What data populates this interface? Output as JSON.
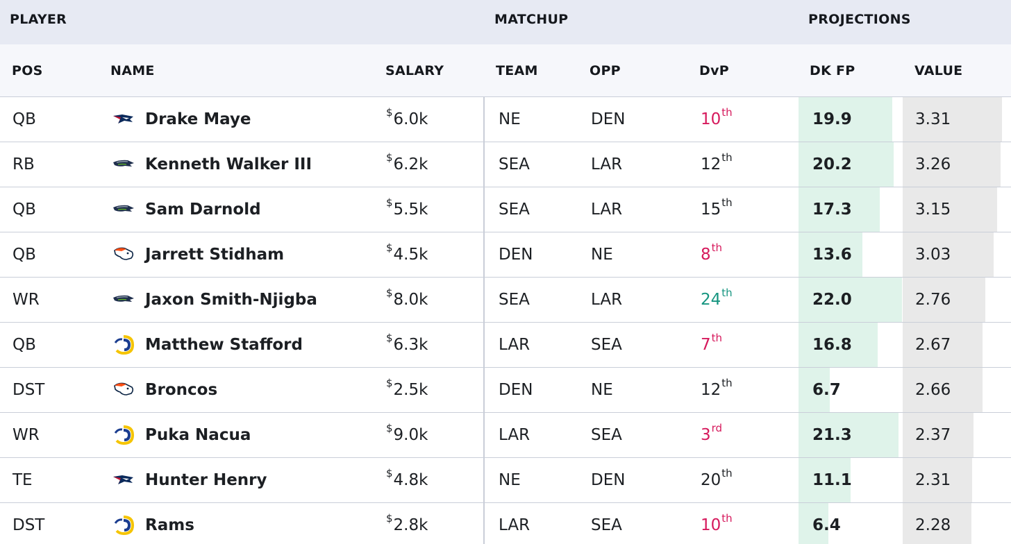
{
  "group_headers": {
    "player": "PLAYER",
    "matchup": "MATCHUP",
    "projections": "PROJECTIONS"
  },
  "columns": {
    "pos": "POS",
    "name": "NAME",
    "salary": "SALARY",
    "team": "TEAM",
    "opp": "OPP",
    "dvp": "DvP",
    "dkfp": "DK FP",
    "value": "VALUE"
  },
  "colors": {
    "dvp_bad": "#d6195c",
    "dvp_good": "#169580",
    "fp_bar": "#dff3ea",
    "value_bar": "#e9e9e9"
  },
  "fp_scale_max": 22.0,
  "value_scale_max": 3.31,
  "rows": [
    {
      "pos": "QB",
      "logo": "patriots-logo-icon",
      "name": "Drake Maye",
      "salary_sym": "$",
      "salary": "6.0k",
      "team": "NE",
      "opp": "DEN",
      "dvp_num": "10",
      "dvp_suf": "th",
      "dvp_tone": "bad",
      "dkfp": "19.9",
      "value": "3.31"
    },
    {
      "pos": "RB",
      "logo": "seahawks-logo-icon",
      "name": "Kenneth Walker III",
      "salary_sym": "$",
      "salary": "6.2k",
      "team": "SEA",
      "opp": "LAR",
      "dvp_num": "12",
      "dvp_suf": "th",
      "dvp_tone": "neutral",
      "dkfp": "20.2",
      "value": "3.26"
    },
    {
      "pos": "QB",
      "logo": "seahawks-logo-icon",
      "name": "Sam Darnold",
      "salary_sym": "$",
      "salary": "5.5k",
      "team": "SEA",
      "opp": "LAR",
      "dvp_num": "15",
      "dvp_suf": "th",
      "dvp_tone": "neutral",
      "dkfp": "17.3",
      "value": "3.15"
    },
    {
      "pos": "QB",
      "logo": "broncos-logo-icon",
      "name": "Jarrett Stidham",
      "salary_sym": "$",
      "salary": "4.5k",
      "team": "DEN",
      "opp": "NE",
      "dvp_num": "8",
      "dvp_suf": "th",
      "dvp_tone": "bad",
      "dkfp": "13.6",
      "value": "3.03"
    },
    {
      "pos": "WR",
      "logo": "seahawks-logo-icon",
      "name": "Jaxon Smith-Njigba",
      "salary_sym": "$",
      "salary": "8.0k",
      "team": "SEA",
      "opp": "LAR",
      "dvp_num": "24",
      "dvp_suf": "th",
      "dvp_tone": "good",
      "dkfp": "22.0",
      "value": "2.76"
    },
    {
      "pos": "QB",
      "logo": "rams-logo-icon",
      "name": "Matthew Stafford",
      "salary_sym": "$",
      "salary": "6.3k",
      "team": "LAR",
      "opp": "SEA",
      "dvp_num": "7",
      "dvp_suf": "th",
      "dvp_tone": "bad",
      "dkfp": "16.8",
      "value": "2.67"
    },
    {
      "pos": "DST",
      "logo": "broncos-logo-icon",
      "name": "Broncos",
      "salary_sym": "$",
      "salary": "2.5k",
      "team": "DEN",
      "opp": "NE",
      "dvp_num": "12",
      "dvp_suf": "th",
      "dvp_tone": "neutral",
      "dkfp": "6.7",
      "value": "2.66"
    },
    {
      "pos": "WR",
      "logo": "rams-logo-icon",
      "name": "Puka Nacua",
      "salary_sym": "$",
      "salary": "9.0k",
      "team": "LAR",
      "opp": "SEA",
      "dvp_num": "3",
      "dvp_suf": "rd",
      "dvp_tone": "bad",
      "dkfp": "21.3",
      "value": "2.37"
    },
    {
      "pos": "TE",
      "logo": "patriots-logo-icon",
      "name": "Hunter Henry",
      "salary_sym": "$",
      "salary": "4.8k",
      "team": "NE",
      "opp": "DEN",
      "dvp_num": "20",
      "dvp_suf": "th",
      "dvp_tone": "neutral",
      "dkfp": "11.1",
      "value": "2.31"
    },
    {
      "pos": "DST",
      "logo": "rams-logo-icon",
      "name": "Rams",
      "salary_sym": "$",
      "salary": "2.8k",
      "team": "LAR",
      "opp": "SEA",
      "dvp_num": "10",
      "dvp_suf": "th",
      "dvp_tone": "bad",
      "dkfp": "6.4",
      "value": "2.28"
    }
  ]
}
